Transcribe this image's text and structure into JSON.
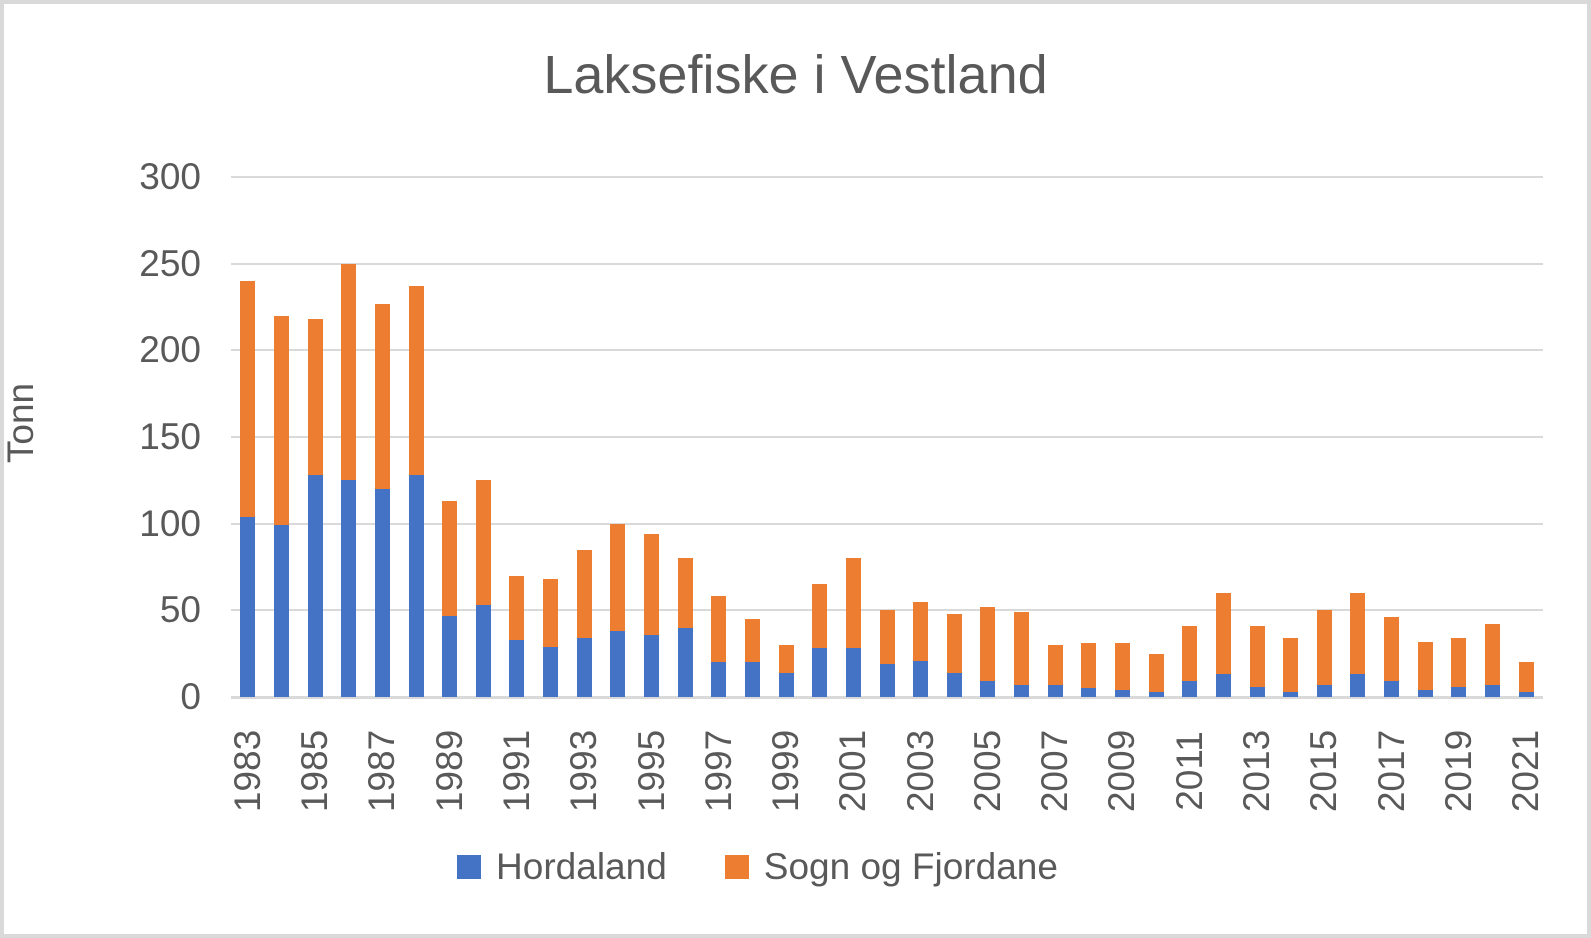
{
  "title": "Laksefiske i Vestland",
  "colors": {
    "hordaland_blue": "#4472C4",
    "sogn_orange": "#ED7D31",
    "gridline_gray": "#D9D9D9",
    "text_gray": "#595959",
    "background": "#FFFFFF",
    "border_gray": "#D9D9D9"
  },
  "legend": {
    "items": [
      {
        "label": "Hordaland",
        "color": "#4472C4"
      },
      {
        "label": "Sogn og Fjordane",
        "color": "#ED7D31"
      }
    ]
  },
  "chart_data": {
    "type": "bar",
    "stacked": true,
    "title": "Laksefiske i Vestland",
    "xlabel": "",
    "ylabel": "Tonn",
    "ylim": [
      0,
      300
    ],
    "yticks": [
      0,
      50,
      100,
      150,
      200,
      250,
      300
    ],
    "grid": true,
    "legend_position": "bottom",
    "categories": [
      1983,
      1984,
      1985,
      1986,
      1987,
      1988,
      1989,
      1990,
      1991,
      1992,
      1993,
      1994,
      1995,
      1996,
      1997,
      1998,
      1999,
      2000,
      2001,
      2002,
      2003,
      2004,
      2005,
      2006,
      2007,
      2008,
      2009,
      2010,
      2011,
      2012,
      2013,
      2014,
      2015,
      2016,
      2017,
      2018,
      2019,
      2020,
      2021
    ],
    "xtick_labels": [
      "1983",
      "1985",
      "1987",
      "1989",
      "1991",
      "1993",
      "1995",
      "1997",
      "1999",
      "2001",
      "2003",
      "2005",
      "2007",
      "2009",
      "2011",
      "2013",
      "2015",
      "2017",
      "2019",
      "2021"
    ],
    "series": [
      {
        "name": "Hordaland",
        "color": "#4472C4",
        "values": [
          104,
          99,
          128,
          125,
          120,
          128,
          47,
          53,
          33,
          29,
          34,
          38,
          36,
          40,
          20,
          20,
          14,
          28,
          28,
          19,
          21,
          14,
          9,
          7,
          7,
          5,
          4,
          3,
          9,
          13,
          6,
          3,
          7,
          13,
          9,
          4,
          6,
          7,
          3
        ]
      },
      {
        "name": "Sogn og Fjordane",
        "color": "#ED7D31",
        "values": [
          136,
          121,
          90,
          125,
          107,
          109,
          66,
          72,
          37,
          39,
          51,
          62,
          58,
          40,
          38,
          25,
          16,
          37,
          52,
          31,
          34,
          34,
          43,
          42,
          23,
          26,
          27,
          22,
          32,
          47,
          35,
          31,
          43,
          47,
          37,
          28,
          28,
          35,
          17
        ]
      }
    ]
  }
}
